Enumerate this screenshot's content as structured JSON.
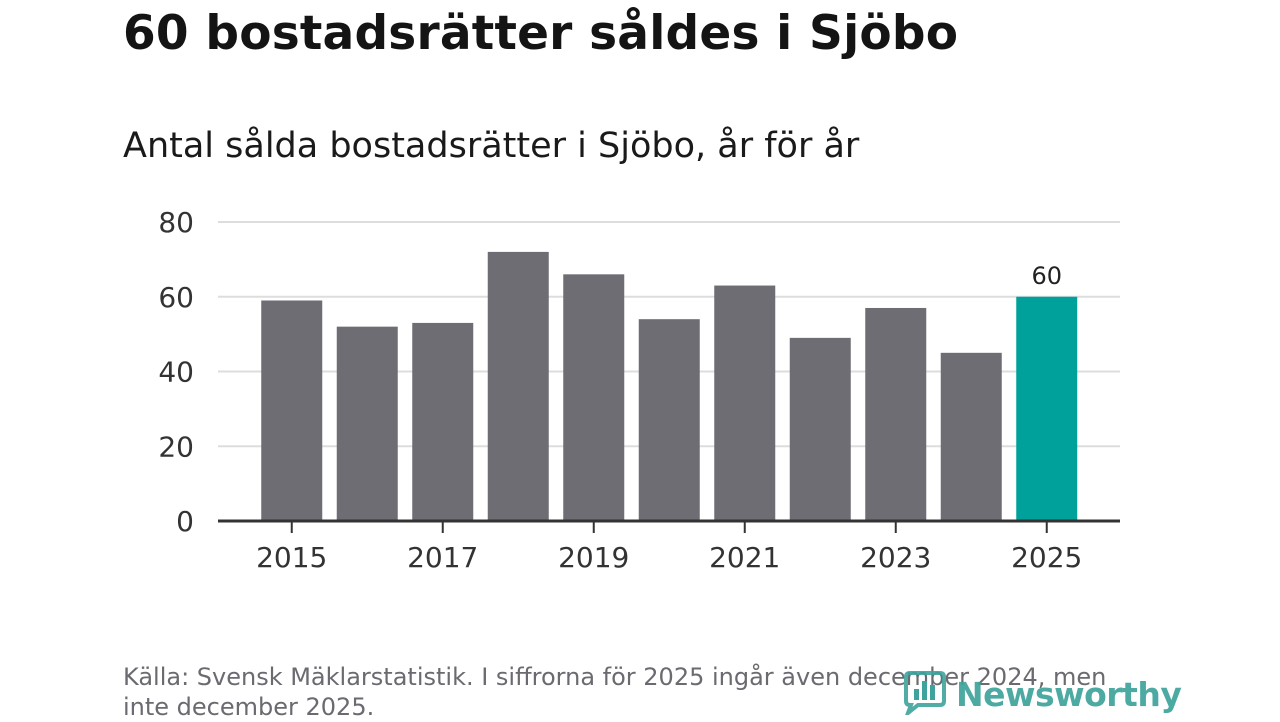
{
  "title": "60 bostadsrätter såldes i Sjöbo",
  "subtitle": "Antal sålda bostadsrätter i Sjöbo, år för år",
  "source": "Källa: Svensk Mäklarstatistik. I siffrorna för 2025 ingår även december 2024, men inte december 2025.",
  "logo": {
    "text": "Newsworthy",
    "icon": "bar-chart-logo-icon"
  },
  "colors": {
    "bar": "#6e6d73",
    "highlight": "#00a19a",
    "grid": "#dddddd",
    "axis": "#333333",
    "logo": "#3ea39c"
  },
  "chart_data": {
    "type": "bar",
    "categories": [
      "2015",
      "2016",
      "2017",
      "2018",
      "2019",
      "2020",
      "2021",
      "2022",
      "2023",
      "2024",
      "2025"
    ],
    "values": [
      59,
      52,
      53,
      72,
      66,
      54,
      63,
      49,
      57,
      45,
      60
    ],
    "x_tick_labels": [
      "2015",
      "2017",
      "2019",
      "2021",
      "2023",
      "2025"
    ],
    "y_ticks": [
      0,
      20,
      40,
      60,
      80
    ],
    "ylim": [
      0,
      80
    ],
    "highlight_category": "2025",
    "data_labels": [
      {
        "category": "2025",
        "label": "60"
      }
    ],
    "xlabel": "",
    "ylabel": "",
    "grid": true
  }
}
